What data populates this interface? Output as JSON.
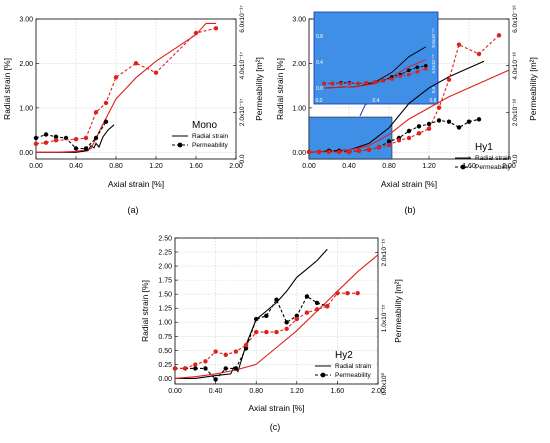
{
  "chart_data": [
    {
      "id": "a",
      "type": "line",
      "caption": "(a)",
      "legend_title": "Mono",
      "legend": [
        "Radial strain",
        "Permeability"
      ],
      "xlabel": "Axial strain [%]",
      "ylabel": "Radial strain [%]",
      "y2label": "Permeability [m²]",
      "xticks": [
        "0.00",
        "0.40",
        "0.80",
        "1.20",
        "1.60",
        "2.00"
      ],
      "yticks": [
        "0.00",
        "1.00",
        "2.00",
        "3.00"
      ],
      "y2ticks": [
        "0.0",
        "2.0x10⁻¹⁷",
        "4.0x10⁻¹⁷",
        "6.0x10⁻¹⁷"
      ],
      "xlim": [
        0,
        2.0
      ],
      "ylim": [
        -0.15,
        3.0
      ],
      "y2lim": [
        0,
        6.0
      ],
      "series": [
        {
          "name": "Radial strain",
          "color": "#000000",
          "style": "solid",
          "marker": "none",
          "axis": "left",
          "x": [
            0.0,
            0.2,
            0.4,
            0.52,
            0.55,
            0.58,
            0.6,
            0.63,
            0.67,
            0.72,
            0.78
          ],
          "y": [
            0.0,
            0.0,
            0.0,
            0.04,
            0.15,
            0.1,
            0.2,
            0.12,
            0.35,
            0.5,
            0.62
          ]
        },
        {
          "name": "Radial strain",
          "color": "#e0201b",
          "style": "solid",
          "marker": "none",
          "axis": "left",
          "x": [
            0.0,
            0.2,
            0.4,
            0.55,
            0.65,
            0.8,
            1.0,
            1.2,
            1.4,
            1.6,
            1.7,
            1.8
          ],
          "y": [
            0.0,
            0.0,
            0.02,
            0.08,
            0.55,
            1.2,
            1.68,
            2.05,
            2.35,
            2.65,
            2.9,
            2.9
          ]
        },
        {
          "name": "Permeability",
          "color": "#000000",
          "style": "dashed",
          "marker": "circle",
          "axis": "right",
          "x": [
            0.0,
            0.1,
            0.2,
            0.3,
            0.4,
            0.5,
            0.6,
            0.7
          ],
          "y": [
            0.9,
            1.05,
            0.95,
            0.9,
            0.45,
            0.45,
            0.9,
            1.6
          ]
        },
        {
          "name": "Permeability",
          "color": "#e0201b",
          "style": "dashed",
          "marker": "circle",
          "axis": "right",
          "x": [
            0.0,
            0.1,
            0.2,
            0.4,
            0.5,
            0.6,
            0.7,
            0.8,
            1.0,
            1.2,
            1.6,
            1.8
          ],
          "y": [
            0.65,
            0.7,
            0.8,
            0.85,
            0.9,
            2.0,
            2.4,
            3.5,
            4.1,
            3.7,
            5.4,
            5.6
          ]
        }
      ]
    },
    {
      "id": "b",
      "type": "line",
      "caption": "(b)",
      "legend_title": "Hy1",
      "legend": [
        "Radial strain",
        "Permeability"
      ],
      "xlabel": "Axial strain [%]",
      "ylabel": "Radial strain [%]",
      "y2label": "Permeability [m²]",
      "xticks": [
        "0.00",
        "0.40",
        "0.80",
        "1.20",
        "1.60",
        "2.00"
      ],
      "yticks": [
        "0.00",
        "1.00",
        "2.00",
        "3.00"
      ],
      "y2ticks": [
        "0.0",
        "2.0x10⁻¹⁶",
        "4.0x10⁻¹⁶",
        "6.0x10⁻¹⁶"
      ],
      "inset_xticks": [
        "0.0",
        "0.4",
        "0.8"
      ],
      "inset_yticks": [
        "0.0",
        "0.4",
        "0.8"
      ],
      "inset_y2ticks": [
        "0.0",
        "4.0x10⁻¹⁶",
        "8.0x10⁻¹⁶"
      ],
      "xlim": [
        0,
        2.0
      ],
      "ylim": [
        -0.15,
        3.0
      ],
      "y2lim": [
        0,
        6.0
      ],
      "series": [
        {
          "name": "Radial strain",
          "color": "#000000",
          "style": "solid",
          "marker": "none",
          "axis": "left",
          "x": [
            0.0,
            0.4,
            0.6,
            0.8,
            1.0,
            1.2,
            1.4,
            1.6,
            1.75
          ],
          "y": [
            0.0,
            0.05,
            0.2,
            0.55,
            1.1,
            1.45,
            1.7,
            1.9,
            2.05
          ]
        },
        {
          "name": "Radial strain",
          "color": "#e0201b",
          "style": "solid",
          "marker": "none",
          "axis": "left",
          "x": [
            0.0,
            0.4,
            0.6,
            0.8,
            1.0,
            1.2,
            1.4,
            1.6,
            1.8,
            2.0
          ],
          "y": [
            0.0,
            0.05,
            0.15,
            0.4,
            0.75,
            1.0,
            1.25,
            1.45,
            1.65,
            1.85
          ]
        },
        {
          "name": "Permeability",
          "color": "#000000",
          "style": "dashed",
          "marker": "circle",
          "axis": "right",
          "x": [
            0.0,
            0.1,
            0.2,
            0.3,
            0.4,
            0.5,
            0.6,
            0.7,
            0.8,
            0.9,
            1.0,
            1.1,
            1.2,
            1.3,
            1.4,
            1.5,
            1.6,
            1.7
          ],
          "y": [
            0.3,
            0.3,
            0.35,
            0.35,
            0.3,
            0.35,
            0.4,
            0.5,
            0.75,
            0.9,
            1.2,
            1.4,
            1.5,
            1.65,
            1.6,
            1.35,
            1.6,
            1.7
          ]
        },
        {
          "name": "Permeability",
          "color": "#e0201b",
          "style": "dashed",
          "marker": "circle",
          "axis": "right",
          "x": [
            0.0,
            0.1,
            0.2,
            0.3,
            0.4,
            0.5,
            0.6,
            0.7,
            0.8,
            0.9,
            1.0,
            1.1,
            1.2,
            1.3,
            1.4,
            1.5,
            1.7,
            1.9
          ],
          "y": [
            0.3,
            0.3,
            0.3,
            0.3,
            0.3,
            0.35,
            0.4,
            0.5,
            0.6,
            0.8,
            0.9,
            1.1,
            1.3,
            2.2,
            3.4,
            4.9,
            4.5,
            5.3
          ]
        }
      ]
    },
    {
      "id": "c",
      "type": "line",
      "caption": "(c)",
      "legend_title": "Hy2",
      "legend": [
        "Radial strain",
        "Permeability"
      ],
      "xlabel": "Axial strain [%]",
      "ylabel": "Radial strain [%]",
      "y2label": "Permeability [m²]",
      "xticks": [
        "0.00",
        "0.40",
        "0.80",
        "1.20",
        "1.60",
        "2.00"
      ],
      "yticks": [
        "0.00",
        "0.25",
        "0.50",
        "0.75",
        "1.00",
        "1.25",
        "1.50",
        "1.75",
        "2.00",
        "2.25",
        "2.50"
      ],
      "y2ticks": [
        "0.0x10⁰",
        "1.0x10⁻¹⁵",
        "2.0x10⁻¹⁵"
      ],
      "xlim": [
        0,
        2.0
      ],
      "ylim": [
        -0.1,
        2.5
      ],
      "y2lim": [
        0,
        2.25
      ],
      "series": [
        {
          "name": "Radial strain",
          "color": "#000000",
          "style": "solid",
          "marker": "none",
          "axis": "left",
          "x": [
            0.0,
            0.2,
            0.4,
            0.55,
            0.58,
            0.62,
            0.7,
            0.8,
            0.9,
            1.0,
            1.1,
            1.2,
            1.3,
            1.4,
            1.5
          ],
          "y": [
            0.0,
            0.0,
            0.05,
            0.08,
            0.2,
            0.12,
            0.6,
            1.05,
            1.2,
            1.35,
            1.55,
            1.8,
            1.95,
            2.1,
            2.3
          ]
        },
        {
          "name": "Radial strain",
          "color": "#e0201b",
          "style": "solid",
          "marker": "none",
          "axis": "left",
          "x": [
            0.0,
            0.2,
            0.4,
            0.6,
            0.8,
            1.0,
            1.2,
            1.4,
            1.6,
            1.8,
            2.0
          ],
          "y": [
            0.0,
            0.03,
            0.08,
            0.15,
            0.25,
            0.55,
            0.85,
            1.2,
            1.55,
            1.9,
            2.2
          ]
        },
        {
          "name": "Permeability",
          "color": "#000000",
          "style": "dashed",
          "marker": "circle",
          "axis": "right",
          "x": [
            0.0,
            0.1,
            0.2,
            0.3,
            0.4,
            0.5,
            0.6,
            0.7,
            0.8,
            0.9,
            1.0,
            1.1,
            1.2,
            1.3,
            1.4,
            1.5
          ],
          "y": [
            0.24,
            0.24,
            0.24,
            0.24,
            0.07,
            0.24,
            0.24,
            0.55,
            1.0,
            1.05,
            1.3,
            0.95,
            1.05,
            1.35,
            1.25,
            1.2
          ]
        },
        {
          "name": "Permeability",
          "color": "#e0201b",
          "style": "dashed",
          "marker": "circle",
          "axis": "right",
          "x": [
            0.0,
            0.1,
            0.2,
            0.3,
            0.4,
            0.5,
            0.6,
            0.7,
            0.8,
            0.9,
            1.0,
            1.1,
            1.2,
            1.3,
            1.4,
            1.5,
            1.6,
            1.7,
            1.8
          ],
          "y": [
            0.24,
            0.24,
            0.3,
            0.35,
            0.5,
            0.45,
            0.5,
            0.6,
            0.8,
            0.8,
            0.8,
            0.85,
            1.0,
            1.1,
            1.15,
            1.2,
            1.4,
            1.4,
            1.4
          ]
        }
      ]
    }
  ]
}
